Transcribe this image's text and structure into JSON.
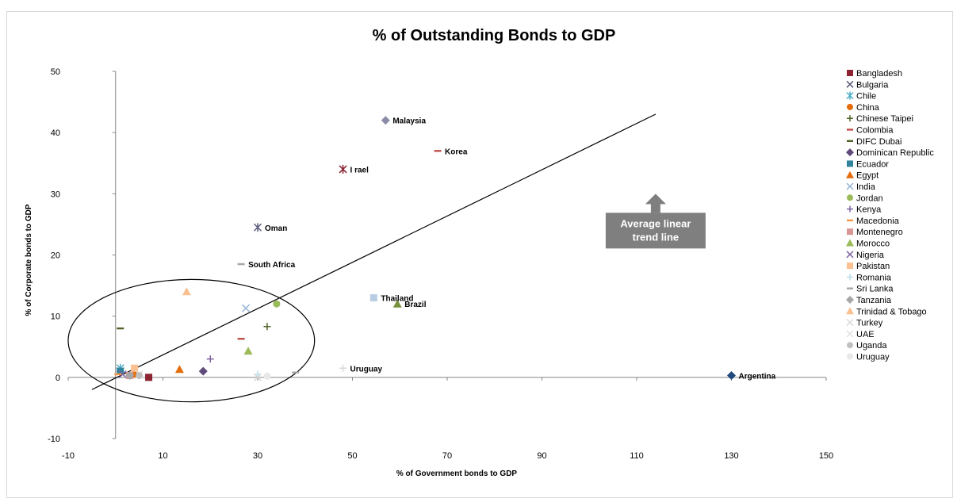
{
  "chart_data": {
    "type": "scatter",
    "title": "% of Outstanding Bonds to GDP",
    "xlabel": "% of Government bonds to GDP",
    "ylabel": "% of Corporate bonds to GDP",
    "xlim": [
      -10,
      150
    ],
    "ylim": [
      -10,
      50
    ],
    "xticks": [
      -10,
      10,
      30,
      50,
      70,
      90,
      110,
      130,
      150
    ],
    "yticks": [
      -10,
      0,
      10,
      20,
      30,
      40,
      50
    ],
    "grid": false,
    "legend_position": "right",
    "series": [
      {
        "name": "Bangladesh",
        "marker": "square",
        "color": "#8B2331",
        "x": 7,
        "y": 0
      },
      {
        "name": "Bulgaria",
        "marker": "x",
        "color": "#5A5A7A",
        "x": 1,
        "y": 1
      },
      {
        "name": "Chile",
        "marker": "star",
        "color": "#4BACC6",
        "x": 1,
        "y": 1.5
      },
      {
        "name": "China",
        "marker": "circle",
        "color": "#E46C0A",
        "x": 4,
        "y": 0.5
      },
      {
        "name": "Chinese Taipei",
        "marker": "plus",
        "color": "#4F6228",
        "x": 32,
        "y": 8.3
      },
      {
        "name": "Colombia",
        "marker": "dash",
        "color": "#C0504D",
        "x": 26.5,
        "y": 6.3
      },
      {
        "name": "DIFC Dubai",
        "marker": "dash",
        "color": "#4F6228",
        "x": 1,
        "y": 8
      },
      {
        "name": "Dominican Republic",
        "marker": "diamond",
        "color": "#604A7B",
        "x": 18.5,
        "y": 1
      },
      {
        "name": "Ecuador",
        "marker": "square",
        "color": "#31849B",
        "x": 1,
        "y": 1
      },
      {
        "name": "Egypt",
        "marker": "triangle",
        "color": "#E46C0A",
        "x": 13.5,
        "y": 1.3
      },
      {
        "name": "India",
        "marker": "x",
        "color": "#95B3D7",
        "x": 27.5,
        "y": 11.3
      },
      {
        "name": "Jordan",
        "marker": "circle",
        "color": "#9BBB59",
        "x": 34,
        "y": 12
      },
      {
        "name": "Kenya",
        "marker": "plus",
        "color": "#8064A2",
        "x": 20,
        "y": 3
      },
      {
        "name": "Macedonia",
        "marker": "dash",
        "color": "#F79646",
        "x": 0.5,
        "y": 0.5
      },
      {
        "name": "Montenegro",
        "marker": "square",
        "color": "#D99694",
        "x": 3,
        "y": 0.3
      },
      {
        "name": "Morocco",
        "marker": "triangle",
        "color": "#9BBB59",
        "x": 28,
        "y": 4.3
      },
      {
        "name": "Nigeria",
        "marker": "x",
        "color": "#8064A2",
        "x": 1.5,
        "y": 0.5
      },
      {
        "name": "Pakistan",
        "marker": "square",
        "color": "#FAC090",
        "x": 4,
        "y": 1.5
      },
      {
        "name": "Romania",
        "marker": "plus",
        "color": "#B7DEE8",
        "x": 30,
        "y": 0.5
      },
      {
        "name": "Sri Lanka",
        "marker": "dash",
        "color": "#A6A6A6",
        "x": 38,
        "y": 0.8
      },
      {
        "name": "Tanzania",
        "marker": "diamond",
        "color": "#A6A6A6",
        "x": 3,
        "y": 0.3
      },
      {
        "name": "Trinidad & Tobago",
        "marker": "triangle",
        "color": "#FAC090",
        "x": 15,
        "y": 14
      },
      {
        "name": "Turkey",
        "marker": "x",
        "color": "#D9D9D9",
        "x": 30,
        "y": 0
      },
      {
        "name": "UAE",
        "marker": "x",
        "color": "#E0E0E0",
        "x": 5,
        "y": 0.5
      },
      {
        "name": "Uganda",
        "marker": "circle",
        "color": "#C0C0C0",
        "x": 5,
        "y": 0.3
      },
      {
        "name": "Uruguay",
        "marker": "circle",
        "color": "#E8E8E8",
        "x": 32,
        "y": 0.2
      }
    ],
    "unlisted_points": [
      {
        "label": "Malaysia",
        "marker": "diamond",
        "color": "#8C8CA8",
        "x": 57,
        "y": 42
      },
      {
        "label": "Korea",
        "marker": "dash",
        "color": "#C0504D",
        "x": 68,
        "y": 37
      },
      {
        "label": "I rael",
        "marker": "star",
        "color": "#8B2331",
        "x": 48,
        "y": 34
      },
      {
        "label": "Oman",
        "marker": "star",
        "color": "#5A5A7A",
        "x": 30,
        "y": 24.5
      },
      {
        "label": "South Africa",
        "marker": "dash",
        "color": "#A6A6A6",
        "x": 26.5,
        "y": 18.5
      },
      {
        "label": "Thailand",
        "marker": "square",
        "color": "#B9CDE5",
        "x": 54.5,
        "y": 13
      },
      {
        "label": "Brazil",
        "marker": "triangle",
        "color": "#76923C",
        "x": 59.5,
        "y": 12
      },
      {
        "label": "Uruguay",
        "marker": "plus",
        "color": "#D9D9D9",
        "x": 48,
        "y": 1.5
      },
      {
        "label": "Argentina",
        "marker": "diamond",
        "color": "#1F497D",
        "x": 130,
        "y": 0.3
      }
    ],
    "trendline": {
      "x": [
        -5,
        114
      ],
      "y": [
        -2,
        43
      ]
    },
    "ellipse": {
      "cx": 16,
      "cy": 6,
      "rx": 26,
      "ry": 10
    },
    "callout": {
      "lines": [
        "Average linear",
        "trend line"
      ],
      "x": 114,
      "y": 30
    }
  }
}
